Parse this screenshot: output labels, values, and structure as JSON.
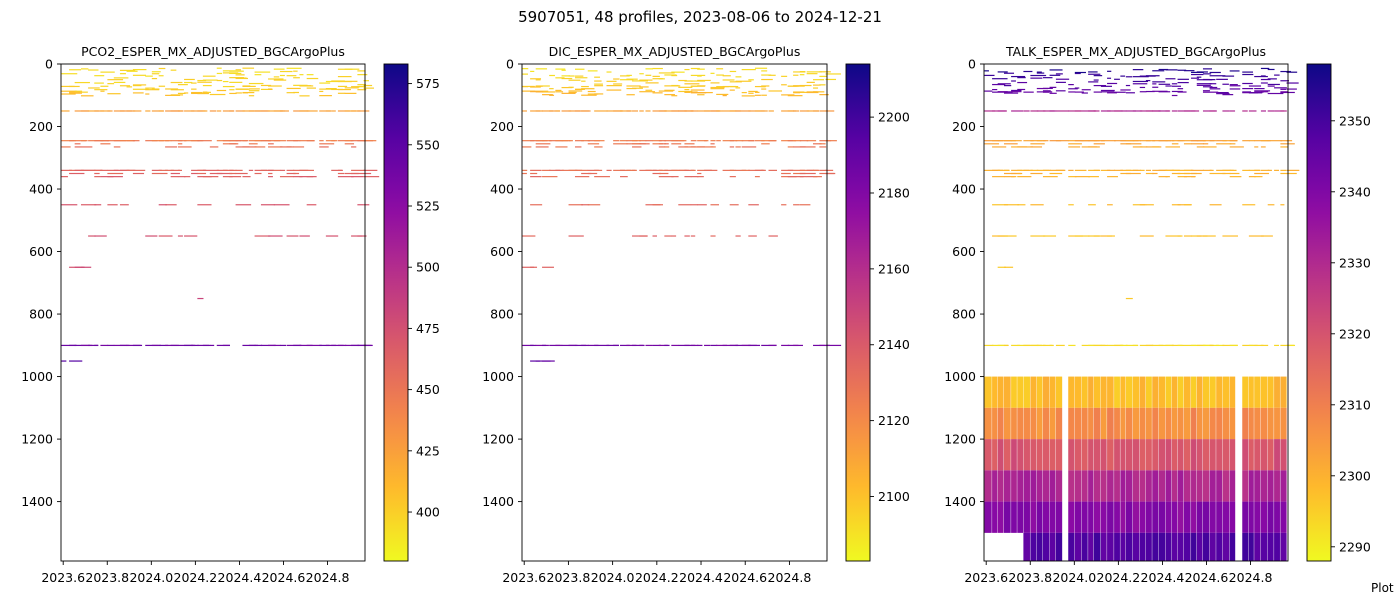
{
  "suptitle": "5907051, 48 profiles, 2023-08-06 to 2024-12-21",
  "footer_text": "Plot",
  "chart_data": [
    {
      "type": "heatmap",
      "title": "PCO2_ESPER_MX_ADJUSTED_BGCArgoPlus",
      "xlim": [
        2023.59,
        2024.97
      ],
      "ylim": [
        1590,
        0
      ],
      "y_inverted": true,
      "xticks": [
        "2023.6",
        "2023.8",
        "2024.0",
        "2024.2",
        "2024.4",
        "2024.6",
        "2024.8"
      ],
      "yticks": [
        "0",
        "200",
        "400",
        "600",
        "800",
        "1000",
        "1200",
        "1400"
      ],
      "colormap": "plasma_r",
      "colorbar": {
        "min": 380,
        "max": 583,
        "ticks": [
          "400",
          "425",
          "450",
          "475",
          "500",
          "525",
          "550",
          "575"
        ]
      },
      "depth_levels": [
        20,
        35,
        50,
        65,
        75,
        85,
        95,
        150,
        245,
        255,
        265,
        340,
        350,
        360,
        450,
        550,
        650,
        750,
        900,
        950
      ],
      "level_values": [
        395,
        395,
        397,
        398,
        400,
        402,
        405,
        425,
        445,
        450,
        452,
        460,
        462,
        465,
        470,
        472,
        478,
        485,
        540,
        550
      ],
      "deep_layers": []
    },
    {
      "type": "heatmap",
      "title": "DIC_ESPER_MX_ADJUSTED_BGCArgoPlus",
      "xlim": [
        2023.59,
        2024.97
      ],
      "ylim": [
        1590,
        0
      ],
      "y_inverted": true,
      "xticks": [
        "2023.6",
        "2023.8",
        "2024.0",
        "2024.2",
        "2024.4",
        "2024.6",
        "2024.8"
      ],
      "yticks": [
        "0",
        "200",
        "400",
        "600",
        "800",
        "1000",
        "1200",
        "1400"
      ],
      "colormap": "plasma_r",
      "colorbar": {
        "min": 2083,
        "max": 2214,
        "ticks": [
          "2100",
          "2120",
          "2140",
          "2160",
          "2180",
          "2200"
        ]
      },
      "depth_levels": [
        20,
        35,
        50,
        65,
        75,
        85,
        95,
        150,
        245,
        255,
        265,
        340,
        350,
        360,
        450,
        550,
        650,
        750,
        900,
        950
      ],
      "level_values": [
        2092,
        2093,
        2095,
        2097,
        2098,
        2100,
        2103,
        2112,
        2125,
        2127,
        2128,
        2130,
        2131,
        2132,
        2133,
        2135,
        2138,
        2145,
        2185,
        2190
      ],
      "deep_layers": []
    },
    {
      "type": "heatmap",
      "title": "TALK_ESPER_MX_ADJUSTED_BGCArgoPlus",
      "xlim": [
        2023.59,
        2024.97
      ],
      "ylim": [
        1590,
        0
      ],
      "y_inverted": true,
      "xticks": [
        "2023.6",
        "2023.8",
        "2024.0",
        "2024.2",
        "2024.4",
        "2024.6",
        "2024.8"
      ],
      "yticks": [
        "0",
        "200",
        "400",
        "600",
        "800",
        "1000",
        "1200",
        "1400"
      ],
      "colormap": "plasma_r",
      "colorbar": {
        "min": 2288,
        "max": 2358,
        "ticks": [
          "2290",
          "2300",
          "2310",
          "2320",
          "2330",
          "2340",
          "2350"
        ]
      },
      "depth_levels": [
        20,
        35,
        50,
        65,
        75,
        85,
        95,
        150,
        245,
        255,
        265,
        340,
        350,
        360,
        450,
        550,
        650,
        750,
        900,
        950
      ],
      "level_values": [
        2355,
        2352,
        2350,
        2348,
        2347,
        2346,
        2345,
        2330,
        2303,
        2302,
        2301,
        2300,
        2300,
        2299,
        2298,
        2297,
        2296,
        2295,
        2293,
        2294
      ],
      "deep_layers": [
        {
          "from": 1000,
          "to": 1100,
          "value": 2298
        },
        {
          "from": 1100,
          "to": 1200,
          "value": 2307
        },
        {
          "from": 1200,
          "to": 1300,
          "value": 2320
        },
        {
          "from": 1300,
          "to": 1400,
          "value": 2331
        },
        {
          "from": 1400,
          "to": 1500,
          "value": 2339
        },
        {
          "from": 1500,
          "to": 1590,
          "value": 2348
        }
      ]
    }
  ]
}
